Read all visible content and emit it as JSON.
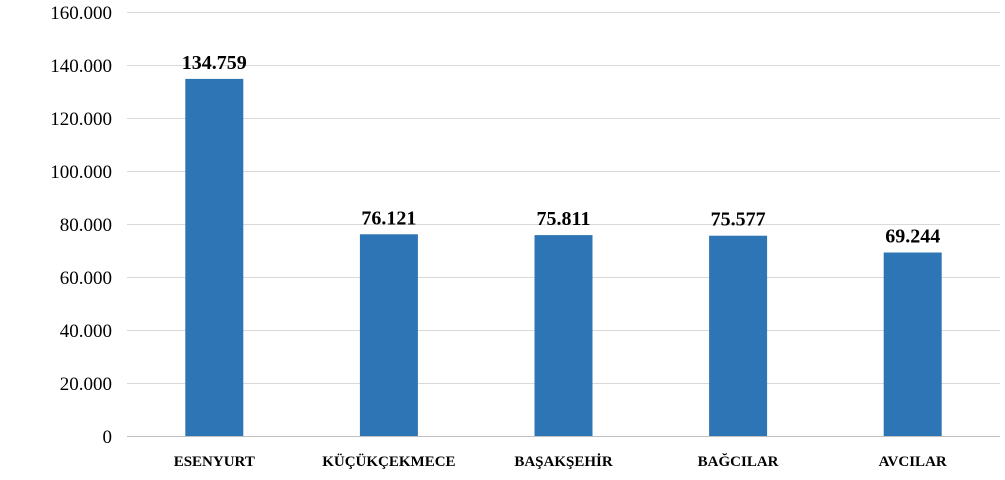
{
  "chart_data": {
    "type": "bar",
    "title": "",
    "xlabel": "",
    "ylabel": "",
    "categories": [
      "ESENYURT",
      "KÜÇÜKÇEKMECE",
      "BAŞAKŞEHİR",
      "BAĞCILAR",
      "AVCILAR"
    ],
    "values": [
      134759,
      76121,
      75811,
      75577,
      69244
    ],
    "data_labels": [
      "134.759",
      "76.121",
      "75.811",
      "75.577",
      "69.244"
    ],
    "ylim": [
      0,
      160000
    ],
    "yticks": [
      0,
      20000,
      40000,
      60000,
      80000,
      100000,
      120000,
      140000,
      160000
    ],
    "ytick_labels": [
      "0",
      "20.000",
      "40.000",
      "60.000",
      "80.000",
      "100.000",
      "120.000",
      "140.000",
      "160.000"
    ],
    "grid": true,
    "legend": "none",
    "bar_color": "#2e75b6",
    "grid_color": "#d9d9d9"
  }
}
